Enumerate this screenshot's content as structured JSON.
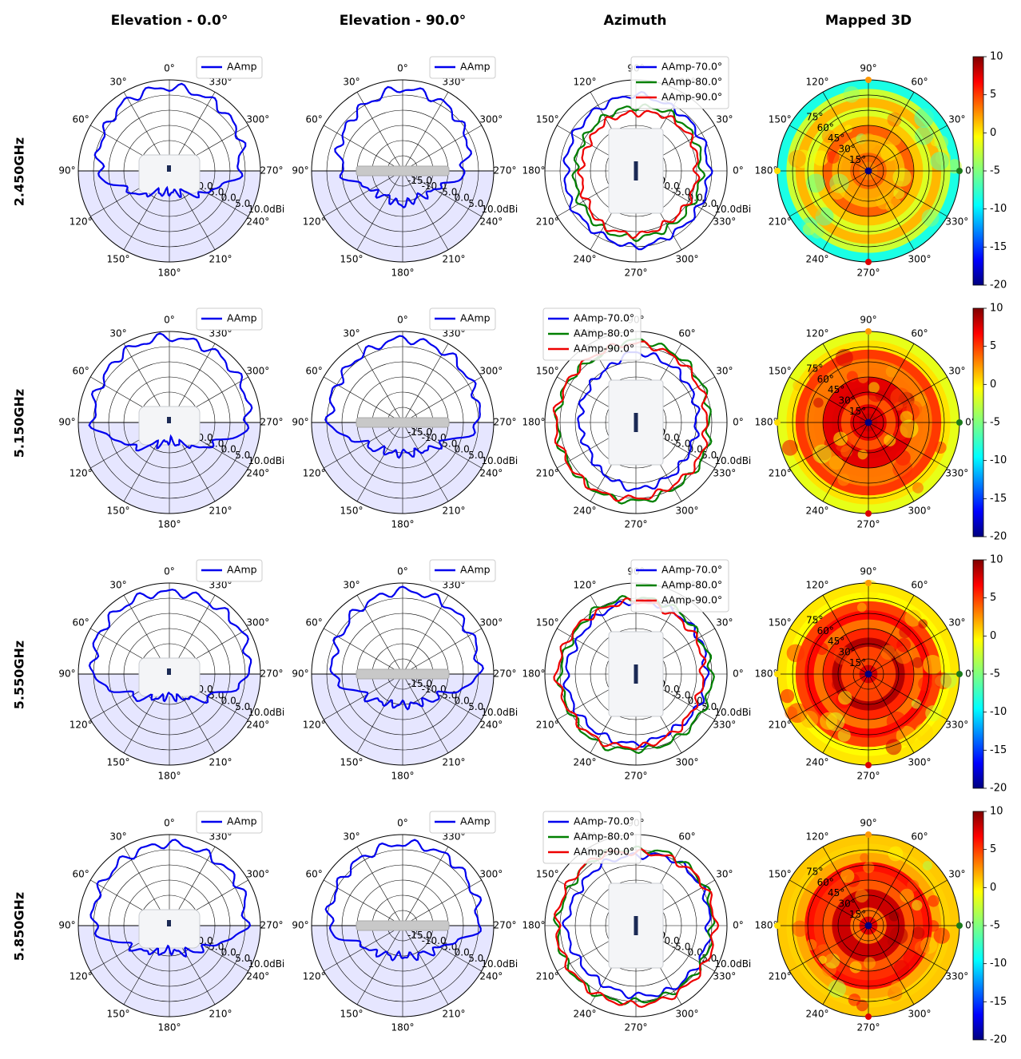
{
  "columns": [
    "Elevation - 0.0°",
    "Elevation - 90.0°",
    "Azimuth",
    "Mapped 3D"
  ],
  "rows": [
    "2.450GHz",
    "5.150GHz",
    "5.550GHz",
    "5.850GHz"
  ],
  "colors": {
    "primary": "#0000ee",
    "series_70": "#0000ee",
    "series_80": "#008000",
    "series_90": "#ee0000",
    "shade": "#e6e6ff"
  },
  "elevation_angle_labels": [
    "0°",
    "30°",
    "60°",
    "90°",
    "120°",
    "150°",
    "180°",
    "210°",
    "240°",
    "270°",
    "300°",
    "330°"
  ],
  "azimuth_angle_labels": [
    "0°",
    "30°",
    "60°",
    "90°",
    "120°",
    "150°",
    "180°",
    "210°",
    "240°",
    "270°",
    "300°",
    "330°"
  ],
  "radial_labels": [
    "-15.0",
    "-10.0",
    "-5.0",
    "0.0",
    "5.0",
    "10.0dBi"
  ],
  "mapped_theta_labels": [
    "15°",
    "30°",
    "45°",
    "60°",
    "75°"
  ],
  "colorbar_ticks": [
    "10",
    "5",
    "0",
    "-5",
    "-10",
    "-15",
    "-20"
  ],
  "chart_data": [
    {
      "type": "polar-line",
      "row": "2.450GHz",
      "plot": "Elevation - 0.0°",
      "series": [
        {
          "name": "AAmp",
          "values": [
            7.5,
            7.0,
            5.0,
            3.0,
            -6.0,
            -12.0,
            -13.0,
            -12.0,
            -6.0,
            3.0,
            6.0,
            7.0
          ]
        }
      ],
      "rlim": [
        -20,
        10
      ]
    },
    {
      "type": "polar-line",
      "row": "2.450GHz",
      "plot": "Elevation - 90.0°",
      "series": [
        {
          "name": "AAmp",
          "values": [
            7.0,
            5.0,
            3.0,
            0.0,
            -8.0,
            -10.0,
            -9.0,
            -10.0,
            -8.0,
            0.0,
            4.0,
            6.0
          ]
        }
      ],
      "rlim": [
        -20,
        10
      ]
    },
    {
      "type": "polar-line",
      "row": "2.450GHz",
      "plot": "Azimuth",
      "series": [
        {
          "name": "AAmp-70.0°",
          "values": [
            4.0,
            4.0,
            4.0,
            5.0,
            4.0,
            3.5,
            3.0,
            4.0,
            4.0,
            5.0,
            4.0,
            4.0
          ]
        },
        {
          "name": "AAmp-80.0°",
          "values": [
            1.5,
            2.0,
            2.0,
            1.0,
            0.5,
            0.0,
            0.0,
            1.0,
            2.0,
            2.0,
            1.5,
            1.5
          ]
        },
        {
          "name": "AAmp-90.0°",
          "values": [
            0.0,
            1.0,
            0.5,
            -1.0,
            -1.0,
            -2.0,
            -2.0,
            -1.0,
            1.0,
            1.0,
            0.0,
            0.0
          ]
        }
      ],
      "rlim": [
        -20,
        10
      ]
    },
    {
      "type": "polar-heatmap",
      "row": "2.450GHz",
      "plot": "Mapped 3D",
      "zlim": [
        -20,
        10
      ],
      "mean_level": 2.0
    },
    {
      "type": "polar-line",
      "row": "5.150GHz",
      "plot": "Elevation - 0.0°",
      "series": [
        {
          "name": "AAmp",
          "values": [
            8.0,
            7.5,
            6.0,
            5.0,
            -5.0,
            -12.0,
            -14.0,
            -12.0,
            -5.0,
            6.0,
            7.0,
            7.5
          ]
        }
      ],
      "rlim": [
        -20,
        10
      ]
    },
    {
      "type": "polar-line",
      "row": "5.150GHz",
      "plot": "Elevation - 90.0°",
      "series": [
        {
          "name": "AAmp",
          "values": [
            7.5,
            6.0,
            5.0,
            4.0,
            -6.0,
            -9.0,
            -10.0,
            -9.0,
            -6.0,
            5.0,
            6.0,
            7.0
          ]
        }
      ],
      "rlim": [
        -20,
        10
      ]
    },
    {
      "type": "polar-line",
      "row": "5.150GHz",
      "plot": "Azimuth",
      "series": [
        {
          "name": "AAmp-70.0°",
          "values": [
            0.0,
            1.0,
            2.0,
            3.0,
            0.0,
            -1.0,
            -1.5,
            -2.0,
            0.0,
            2.0,
            1.0,
            0.0
          ]
        },
        {
          "name": "AAmp-80.0°",
          "values": [
            4.0,
            5.0,
            6.0,
            7.0,
            5.0,
            6.0,
            6.0,
            6.0,
            6.0,
            6.0,
            5.0,
            5.0
          ]
        },
        {
          "name": "AAmp-90.0°",
          "values": [
            3.0,
            4.0,
            5.0,
            6.0,
            6.0,
            6.0,
            6.5,
            6.0,
            6.0,
            5.0,
            4.0,
            4.0
          ]
        }
      ],
      "rlim": [
        -20,
        10
      ]
    },
    {
      "type": "polar-heatmap",
      "row": "5.150GHz",
      "plot": "Mapped 3D",
      "zlim": [
        -20,
        10
      ],
      "mean_level": 6.0
    },
    {
      "type": "polar-line",
      "row": "5.550GHz",
      "plot": "Elevation - 0.0°",
      "series": [
        {
          "name": "AAmp",
          "values": [
            7.0,
            7.0,
            6.5,
            5.0,
            -6.0,
            -11.0,
            -13.0,
            -11.0,
            -5.0,
            6.0,
            7.5,
            7.0
          ]
        }
      ],
      "rlim": [
        -20,
        10
      ]
    },
    {
      "type": "polar-line",
      "row": "5.550GHz",
      "plot": "Elevation - 90.0°",
      "series": [
        {
          "name": "AAmp",
          "values": [
            7.5,
            6.0,
            4.0,
            3.0,
            -6.0,
            -9.0,
            -10.0,
            -9.0,
            -6.0,
            5.0,
            6.0,
            7.0
          ]
        }
      ],
      "rlim": [
        -20,
        10
      ]
    },
    {
      "type": "polar-line",
      "row": "5.550GHz",
      "plot": "Azimuth",
      "series": [
        {
          "name": "AAmp-70.0°",
          "values": [
            3.0,
            4.0,
            4.0,
            4.0,
            3.0,
            2.0,
            3.0,
            3.0,
            3.0,
            3.0,
            2.0,
            3.0
          ]
        },
        {
          "name": "AAmp-80.0°",
          "values": [
            5.0,
            4.0,
            5.0,
            5.0,
            5.0,
            4.0,
            5.0,
            5.0,
            6.0,
            5.0,
            5.0,
            5.0
          ]
        },
        {
          "name": "AAmp-90.0°",
          "values": [
            2.0,
            3.0,
            3.0,
            4.0,
            4.0,
            5.0,
            6.0,
            5.0,
            5.0,
            4.0,
            3.0,
            2.0
          ]
        }
      ],
      "rlim": [
        -20,
        10
      ]
    },
    {
      "type": "polar-heatmap",
      "row": "5.550GHz",
      "plot": "Mapped 3D",
      "zlim": [
        -20,
        10
      ],
      "mean_level": 6.0
    },
    {
      "type": "polar-line",
      "row": "5.850GHz",
      "plot": "Elevation - 0.0°",
      "series": [
        {
          "name": "AAmp",
          "values": [
            7.0,
            6.5,
            6.0,
            5.0,
            -6.0,
            -10.0,
            -12.0,
            -10.0,
            -6.0,
            5.0,
            6.5,
            6.5
          ]
        }
      ],
      "rlim": [
        -20,
        10
      ]
    },
    {
      "type": "polar-line",
      "row": "5.850GHz",
      "plot": "Elevation - 90.0°",
      "series": [
        {
          "name": "AAmp",
          "values": [
            7.0,
            6.0,
            5.0,
            4.0,
            -6.0,
            -9.0,
            -10.0,
            -9.0,
            -6.0,
            5.0,
            6.0,
            7.0
          ]
        }
      ],
      "rlim": [
        -20,
        10
      ]
    },
    {
      "type": "polar-line",
      "row": "5.850GHz",
      "plot": "Azimuth",
      "series": [
        {
          "name": "AAmp-70.0°",
          "values": [
            4.0,
            5.0,
            5.0,
            3.0,
            3.0,
            2.0,
            3.0,
            2.0,
            2.0,
            3.0,
            4.0,
            4.0
          ]
        },
        {
          "name": "AAmp-80.0°",
          "values": [
            5.0,
            6.0,
            6.0,
            5.0,
            6.0,
            5.0,
            6.0,
            6.0,
            6.0,
            5.0,
            5.0,
            5.0
          ]
        },
        {
          "name": "AAmp-90.0°",
          "values": [
            6.0,
            6.0,
            5.0,
            4.0,
            6.0,
            6.0,
            6.0,
            6.0,
            6.0,
            6.0,
            6.0,
            6.0
          ]
        }
      ],
      "rlim": [
        -20,
        10
      ]
    },
    {
      "type": "polar-heatmap",
      "row": "5.850GHz",
      "plot": "Mapped 3D",
      "zlim": [
        -20,
        10
      ],
      "mean_level": 6.0
    }
  ]
}
